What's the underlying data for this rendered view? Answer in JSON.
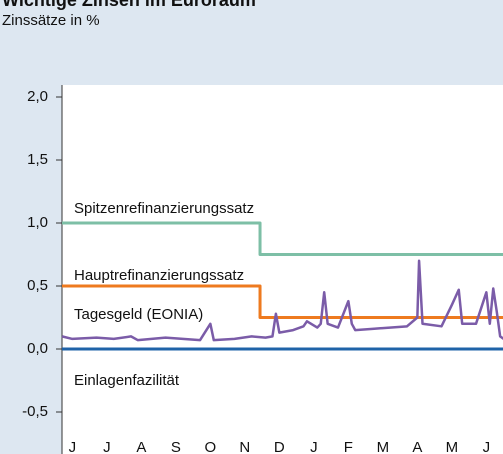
{
  "chart_data": {
    "type": "line",
    "title": "Wichtige Zinsen im Euroraum",
    "subtitle": "Zinssätze in %",
    "categories": [
      "J",
      "J",
      "A",
      "S",
      "O",
      "N",
      "D",
      "J",
      "F",
      "M",
      "A",
      "M",
      "J"
    ],
    "ylim": [
      -0.5,
      2.0
    ],
    "yticks": [
      {
        "value": -0.5,
        "label": "-0,5"
      },
      {
        "value": 0,
        "label": "0,0"
      },
      {
        "value": 0.5,
        "label": "0,5"
      },
      {
        "value": 1.0,
        "label": "1,0"
      },
      {
        "value": 1.5,
        "label": "1,5"
      },
      {
        "value": 2.0,
        "label": "2,0"
      }
    ],
    "xlim": [
      0,
      13
    ],
    "series": [
      {
        "name": "Spitzenrefinanzierungssatz",
        "color": "#7dbfa6",
        "x": [
          0,
          5.74,
          5.74,
          12.8
        ],
        "values": [
          1.0,
          1.0,
          0.75,
          0.75
        ]
      },
      {
        "name": "Hauptrefinanzierungssatz",
        "color": "#ee7a1f",
        "x": [
          0,
          5.74,
          5.74,
          12.8
        ],
        "values": [
          0.5,
          0.5,
          0.25,
          0.25
        ]
      },
      {
        "name": "Tagesgeld (EONIA)",
        "color": "#7b5ca8",
        "x": [
          0,
          0.3,
          1,
          1.5,
          2,
          2.2,
          3,
          3.5,
          4,
          4.3,
          4.4,
          5,
          5.5,
          5.9,
          6.1,
          6.2,
          6.3,
          6.7,
          7,
          7.1,
          7.4,
          7.5,
          7.6,
          7.7,
          8,
          8.3,
          8.4,
          8.5,
          9,
          9.5,
          10,
          10.3,
          10.35,
          10.45,
          11,
          11.3,
          11.5,
          11.6,
          12,
          12.3,
          12.4,
          12.5,
          12.6,
          12.7,
          12.8
        ],
        "values": [
          0.1,
          0.08,
          0.09,
          0.08,
          0.1,
          0.07,
          0.09,
          0.08,
          0.07,
          0.2,
          0.07,
          0.08,
          0.1,
          0.09,
          0.1,
          0.28,
          0.13,
          0.15,
          0.18,
          0.22,
          0.17,
          0.2,
          0.45,
          0.2,
          0.17,
          0.38,
          0.2,
          0.15,
          0.16,
          0.17,
          0.18,
          0.25,
          0.7,
          0.2,
          0.18,
          0.35,
          0.47,
          0.2,
          0.2,
          0.45,
          0.2,
          0.48,
          0.3,
          0.1,
          0.08
        ]
      },
      {
        "name": "Einlagenfazilität",
        "color": "#1f63a8",
        "x": [
          0,
          12.8
        ],
        "values": [
          0,
          0
        ]
      }
    ]
  }
}
